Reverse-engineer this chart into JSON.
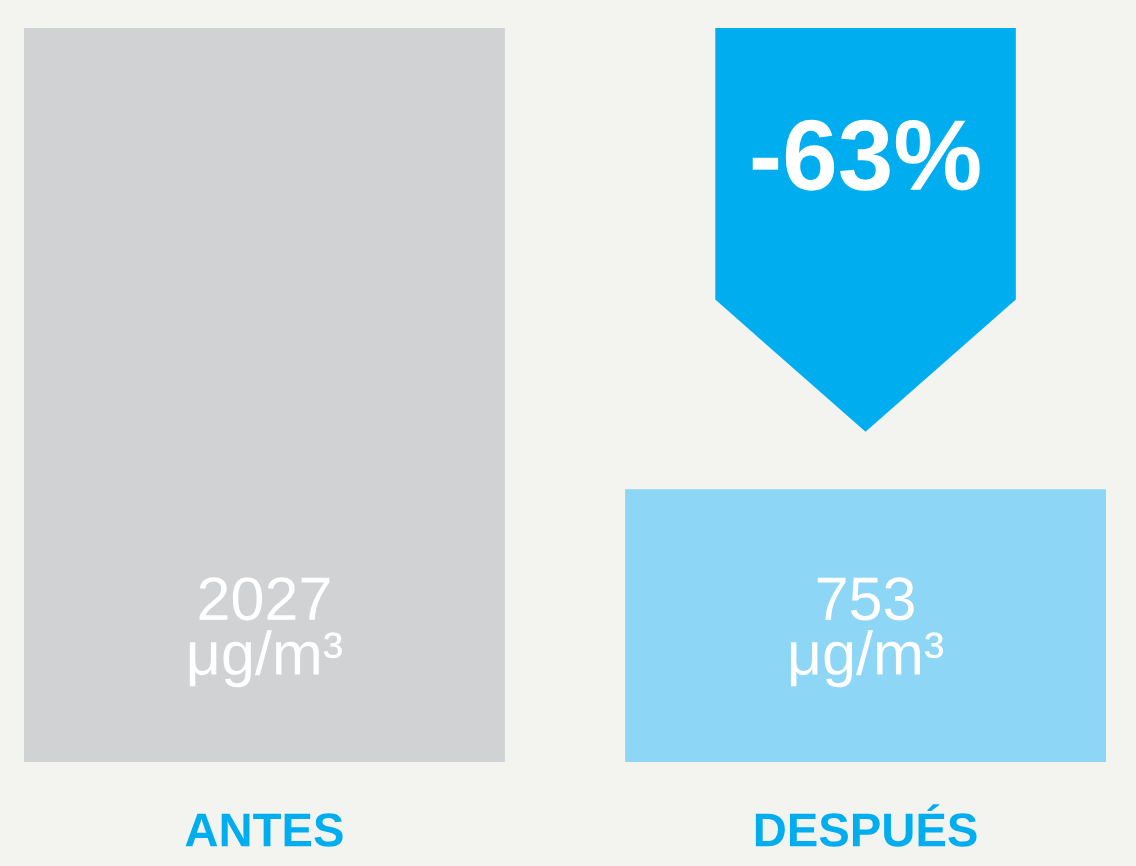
{
  "chart_data": {
    "type": "bar",
    "categories": [
      "ANTES",
      "DESPUÉS"
    ],
    "values": [
      2027,
      753
    ],
    "colors": [
      "#d1d2d4",
      "#8dd6f6"
    ],
    "value_labels": [
      "2027\nμg/m³",
      "753\nμg/m³"
    ],
    "annotations": [
      "-63%"
    ],
    "grid": false,
    "legend": false
  }
}
